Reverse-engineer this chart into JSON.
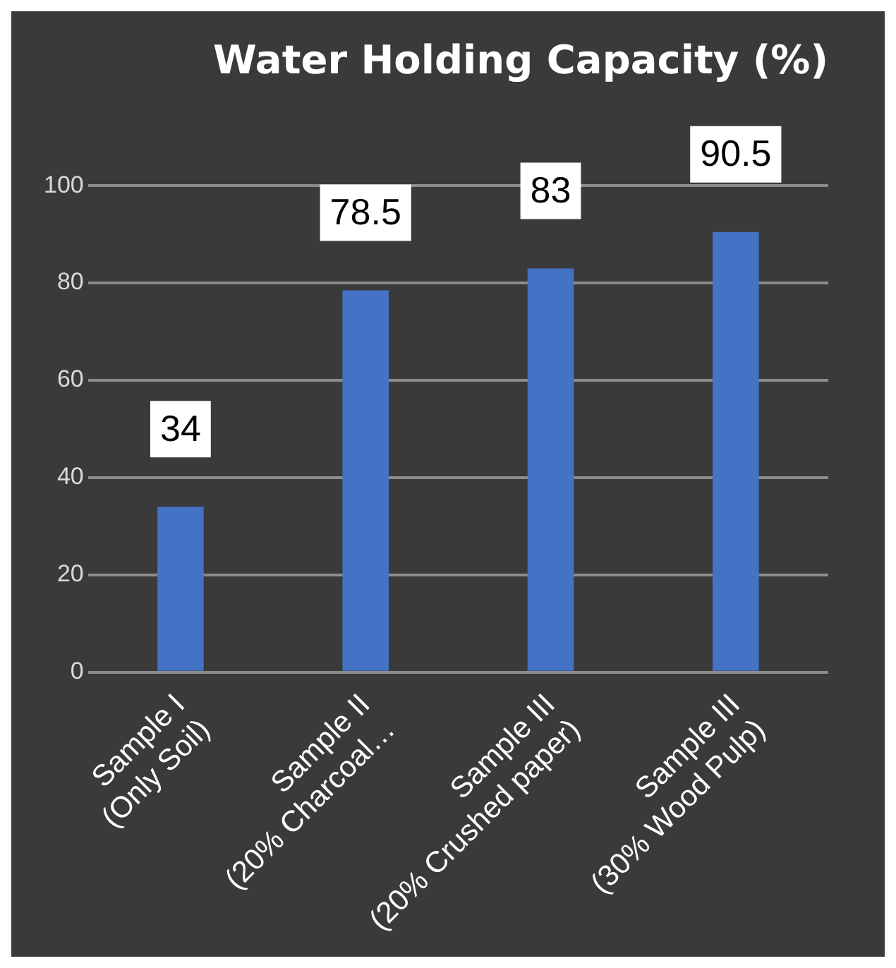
{
  "chart_data": {
    "type": "bar",
    "title": "Water Holding Capacity (%)",
    "categories": [
      "Sample I (Only Soil)",
      "Sample II (20% Charcoal…",
      "Sample III (20% Crushed paper)",
      "Sample III (30% Wood Pulp)"
    ],
    "values": [
      34,
      78.5,
      83,
      90.5
    ],
    "color": "#4472c4",
    "ylim": [
      0,
      100
    ],
    "yticks": [
      0,
      20,
      40,
      60,
      80,
      100
    ],
    "grid": "y",
    "data_labels": true,
    "legend": false
  }
}
